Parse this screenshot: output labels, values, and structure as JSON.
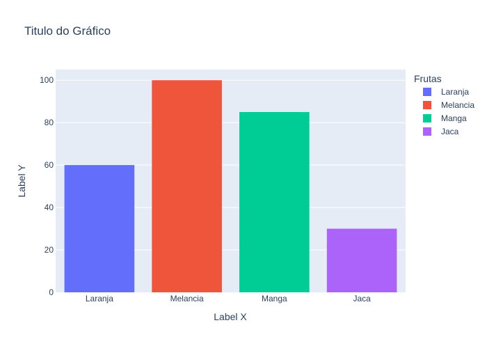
{
  "chart_data": {
    "type": "bar",
    "title": "Titulo do Gráfico",
    "xlabel": "Label X",
    "ylabel": "Label Y",
    "categories": [
      "Laranja",
      "Melancia",
      "Manga",
      "Jaca"
    ],
    "series": [
      {
        "name": "Laranja",
        "values": [
          60,
          null,
          null,
          null
        ],
        "color": "#636efa"
      },
      {
        "name": "Melancia",
        "values": [
          null,
          100,
          null,
          null
        ],
        "color": "#ef553b"
      },
      {
        "name": "Manga",
        "values": [
          null,
          null,
          85,
          null
        ],
        "color": "#00cc96"
      },
      {
        "name": "Jaca",
        "values": [
          null,
          null,
          null,
          30
        ],
        "color": "#ab63fa"
      }
    ],
    "ylim": [
      0,
      105
    ],
    "yticks": [
      0,
      20,
      40,
      60,
      80,
      100
    ],
    "grid": true,
    "legend": {
      "title": "Frutas",
      "placement": "right"
    },
    "colors": {
      "plot_background": "#e5ecf6",
      "gridline": "#ffffff",
      "text": "#2a3f5f"
    }
  }
}
